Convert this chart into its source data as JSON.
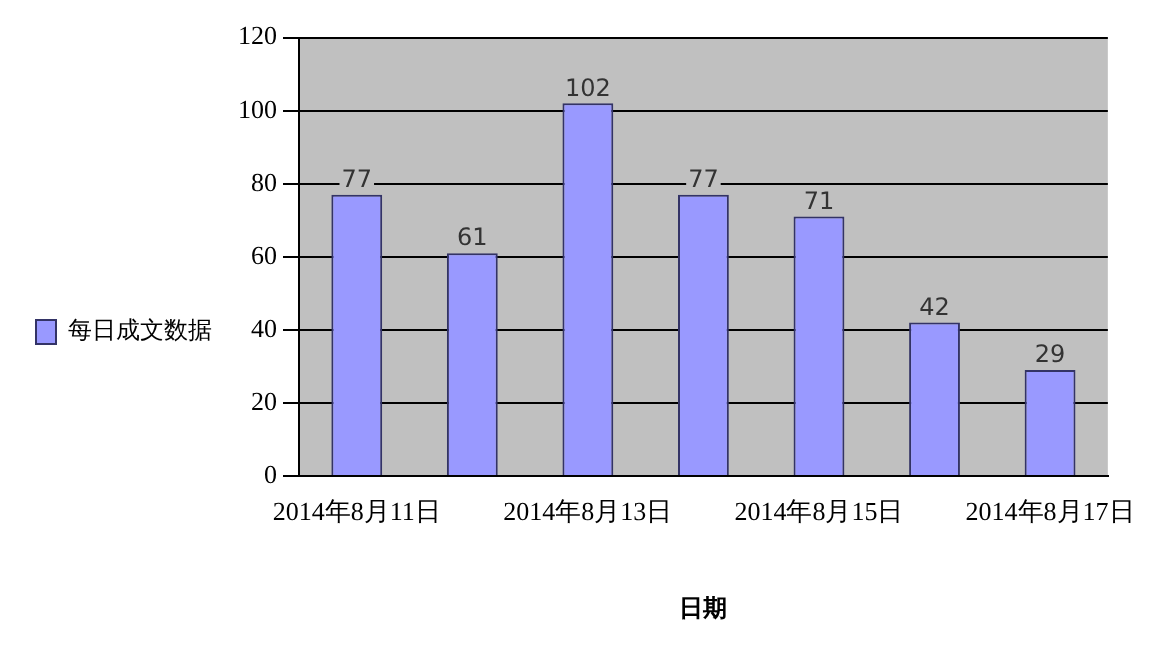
{
  "chart_data": {
    "type": "bar",
    "xlabel": "日期",
    "categories": [
      "2014年8月11日",
      null,
      "2014年8月13日",
      null,
      "2014年8月15日",
      null,
      "2014年8月17日"
    ],
    "series": [
      {
        "name": "每日成文数据",
        "color": "#9999ff",
        "values": [
          77,
          61,
          102,
          77,
          71,
          42,
          29
        ]
      }
    ],
    "ylim": [
      0,
      120
    ],
    "yticks": [
      0,
      20,
      40,
      60,
      80,
      100,
      120
    ],
    "grid": "y",
    "legend": "left",
    "data_labels": true
  }
}
